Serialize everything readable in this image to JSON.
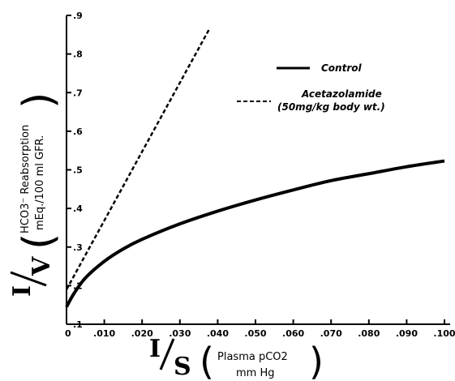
{
  "chart_data": {
    "type": "line",
    "xlim": [
      0,
      0.1
    ],
    "ylim": [
      0.1,
      0.9
    ],
    "x_ticks": [
      ".010",
      ".020",
      ".030",
      ".040",
      ".050",
      ".060",
      ".070",
      ".080",
      ".090",
      ".100"
    ],
    "x_zero_label": "0",
    "y_ticks": [
      ".1",
      ".2",
      ".3",
      ".4",
      ".5",
      ".6",
      ".7",
      ".8",
      ".9"
    ],
    "xlabel": {
      "main_num": "I",
      "main_den": "S",
      "line1": "Plasma  pCO2",
      "line2": "mm Hg"
    },
    "ylabel": {
      "main_num": "I",
      "main_den": "V",
      "line1": "HCO3⁻ Reabsorption",
      "line2": "mEq./100 ml  GFR."
    },
    "legend": {
      "control": "Control",
      "acetazolamide_line1": "Acetazolamide",
      "acetazolamide_line2": "(50mg/kg body wt.)"
    },
    "series": [
      {
        "name": "Control",
        "style": "solid",
        "x": [
          0,
          0.002,
          0.005,
          0.01,
          0.015,
          0.02,
          0.03,
          0.04,
          0.05,
          0.06,
          0.07,
          0.08,
          0.09,
          0.1
        ],
        "y": [
          0.145,
          0.18,
          0.22,
          0.263,
          0.295,
          0.32,
          0.36,
          0.393,
          0.422,
          0.448,
          0.472,
          0.49,
          0.508,
          0.523
        ]
      },
      {
        "name": "Acetazolamide (50mg/kg body wt.)",
        "style": "dashed",
        "x": [
          0,
          0.0378
        ],
        "y": [
          0.19,
          0.865
        ]
      }
    ]
  }
}
